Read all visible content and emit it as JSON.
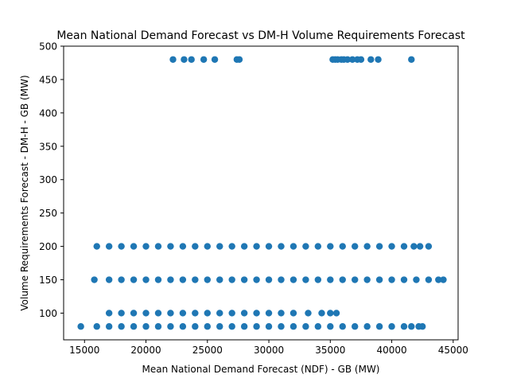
{
  "chart_data": {
    "type": "scatter",
    "title": "Mean National Demand Forecast vs DM-H Volume Requirements Forecast",
    "xlabel": "Mean National Demand Forecast (NDF) - GB (MW)",
    "ylabel": "Volume Requirements Forecast - DM-H - GB (MW)",
    "xlim": [
      13300,
      45400
    ],
    "ylim": [
      60,
      500
    ],
    "xticks": [
      15000,
      20000,
      25000,
      30000,
      35000,
      40000,
      45000
    ],
    "xtick_labels": [
      "15000",
      "20000",
      "25000",
      "30000",
      "35000",
      "40000",
      "45000"
    ],
    "yticks": [
      100,
      150,
      200,
      250,
      300,
      350,
      400,
      450,
      500
    ],
    "ytick_labels": [
      "100",
      "150",
      "200",
      "250",
      "300",
      "350",
      "400",
      "450",
      "500"
    ],
    "grid": false,
    "legend": "none",
    "marker_color": "#1f77b4",
    "series": [
      {
        "name": "",
        "points": [
          {
            "x": 22200,
            "y": 480
          },
          {
            "x": 23100,
            "y": 480
          },
          {
            "x": 23700,
            "y": 480
          },
          {
            "x": 24700,
            "y": 480
          },
          {
            "x": 25600,
            "y": 480
          },
          {
            "x": 27400,
            "y": 480
          },
          {
            "x": 27600,
            "y": 480
          },
          {
            "x": 35200,
            "y": 480
          },
          {
            "x": 35400,
            "y": 480
          },
          {
            "x": 35600,
            "y": 480
          },
          {
            "x": 35900,
            "y": 480
          },
          {
            "x": 36100,
            "y": 480
          },
          {
            "x": 36400,
            "y": 480
          },
          {
            "x": 36800,
            "y": 480
          },
          {
            "x": 37200,
            "y": 480
          },
          {
            "x": 37500,
            "y": 480
          },
          {
            "x": 38300,
            "y": 480
          },
          {
            "x": 38900,
            "y": 480
          },
          {
            "x": 41600,
            "y": 480
          },
          {
            "x": 16000,
            "y": 200
          },
          {
            "x": 17000,
            "y": 200
          },
          {
            "x": 18000,
            "y": 200
          },
          {
            "x": 19000,
            "y": 200
          },
          {
            "x": 20000,
            "y": 200
          },
          {
            "x": 21000,
            "y": 200
          },
          {
            "x": 22000,
            "y": 200
          },
          {
            "x": 23000,
            "y": 200
          },
          {
            "x": 24000,
            "y": 200
          },
          {
            "x": 25000,
            "y": 200
          },
          {
            "x": 26000,
            "y": 200
          },
          {
            "x": 27000,
            "y": 200
          },
          {
            "x": 28000,
            "y": 200
          },
          {
            "x": 29000,
            "y": 200
          },
          {
            "x": 30000,
            "y": 200
          },
          {
            "x": 31000,
            "y": 200
          },
          {
            "x": 32000,
            "y": 200
          },
          {
            "x": 33000,
            "y": 200
          },
          {
            "x": 34000,
            "y": 200
          },
          {
            "x": 35000,
            "y": 200
          },
          {
            "x": 36000,
            "y": 200
          },
          {
            "x": 37000,
            "y": 200
          },
          {
            "x": 38000,
            "y": 200
          },
          {
            "x": 39000,
            "y": 200
          },
          {
            "x": 40000,
            "y": 200
          },
          {
            "x": 41000,
            "y": 200
          },
          {
            "x": 41800,
            "y": 200
          },
          {
            "x": 42300,
            "y": 200
          },
          {
            "x": 43000,
            "y": 200
          },
          {
            "x": 15800,
            "y": 150
          },
          {
            "x": 17000,
            "y": 150
          },
          {
            "x": 18000,
            "y": 150
          },
          {
            "x": 19000,
            "y": 150
          },
          {
            "x": 20000,
            "y": 150
          },
          {
            "x": 21000,
            "y": 150
          },
          {
            "x": 22000,
            "y": 150
          },
          {
            "x": 23000,
            "y": 150
          },
          {
            "x": 24000,
            "y": 150
          },
          {
            "x": 25000,
            "y": 150
          },
          {
            "x": 26000,
            "y": 150
          },
          {
            "x": 27000,
            "y": 150
          },
          {
            "x": 28000,
            "y": 150
          },
          {
            "x": 29000,
            "y": 150
          },
          {
            "x": 30000,
            "y": 150
          },
          {
            "x": 31000,
            "y": 150
          },
          {
            "x": 32000,
            "y": 150
          },
          {
            "x": 33000,
            "y": 150
          },
          {
            "x": 34000,
            "y": 150
          },
          {
            "x": 35000,
            "y": 150
          },
          {
            "x": 36000,
            "y": 150
          },
          {
            "x": 37000,
            "y": 150
          },
          {
            "x": 38000,
            "y": 150
          },
          {
            "x": 39000,
            "y": 150
          },
          {
            "x": 40000,
            "y": 150
          },
          {
            "x": 41000,
            "y": 150
          },
          {
            "x": 42000,
            "y": 150
          },
          {
            "x": 43000,
            "y": 150
          },
          {
            "x": 43800,
            "y": 150
          },
          {
            "x": 44200,
            "y": 150
          },
          {
            "x": 17000,
            "y": 100
          },
          {
            "x": 18000,
            "y": 100
          },
          {
            "x": 19000,
            "y": 100
          },
          {
            "x": 20000,
            "y": 100
          },
          {
            "x": 21000,
            "y": 100
          },
          {
            "x": 22000,
            "y": 100
          },
          {
            "x": 23000,
            "y": 100
          },
          {
            "x": 24000,
            "y": 100
          },
          {
            "x": 25000,
            "y": 100
          },
          {
            "x": 26000,
            "y": 100
          },
          {
            "x": 27000,
            "y": 100
          },
          {
            "x": 28000,
            "y": 100
          },
          {
            "x": 29000,
            "y": 100
          },
          {
            "x": 30000,
            "y": 100
          },
          {
            "x": 31000,
            "y": 100
          },
          {
            "x": 32000,
            "y": 100
          },
          {
            "x": 33200,
            "y": 100
          },
          {
            "x": 34300,
            "y": 100
          },
          {
            "x": 35000,
            "y": 100
          },
          {
            "x": 35500,
            "y": 100
          },
          {
            "x": 14700,
            "y": 80
          },
          {
            "x": 16000,
            "y": 80
          },
          {
            "x": 17000,
            "y": 80
          },
          {
            "x": 18000,
            "y": 80
          },
          {
            "x": 19000,
            "y": 80
          },
          {
            "x": 20000,
            "y": 80
          },
          {
            "x": 21000,
            "y": 80
          },
          {
            "x": 22000,
            "y": 80
          },
          {
            "x": 23000,
            "y": 80
          },
          {
            "x": 24000,
            "y": 80
          },
          {
            "x": 25000,
            "y": 80
          },
          {
            "x": 26000,
            "y": 80
          },
          {
            "x": 27000,
            "y": 80
          },
          {
            "x": 28000,
            "y": 80
          },
          {
            "x": 29000,
            "y": 80
          },
          {
            "x": 30000,
            "y": 80
          },
          {
            "x": 31000,
            "y": 80
          },
          {
            "x": 32000,
            "y": 80
          },
          {
            "x": 33000,
            "y": 80
          },
          {
            "x": 34000,
            "y": 80
          },
          {
            "x": 35000,
            "y": 80
          },
          {
            "x": 36000,
            "y": 80
          },
          {
            "x": 37000,
            "y": 80
          },
          {
            "x": 38000,
            "y": 80
          },
          {
            "x": 39000,
            "y": 80
          },
          {
            "x": 40000,
            "y": 80
          },
          {
            "x": 41000,
            "y": 80
          },
          {
            "x": 41600,
            "y": 80
          },
          {
            "x": 42200,
            "y": 80
          },
          {
            "x": 42500,
            "y": 80
          }
        ]
      }
    ]
  }
}
